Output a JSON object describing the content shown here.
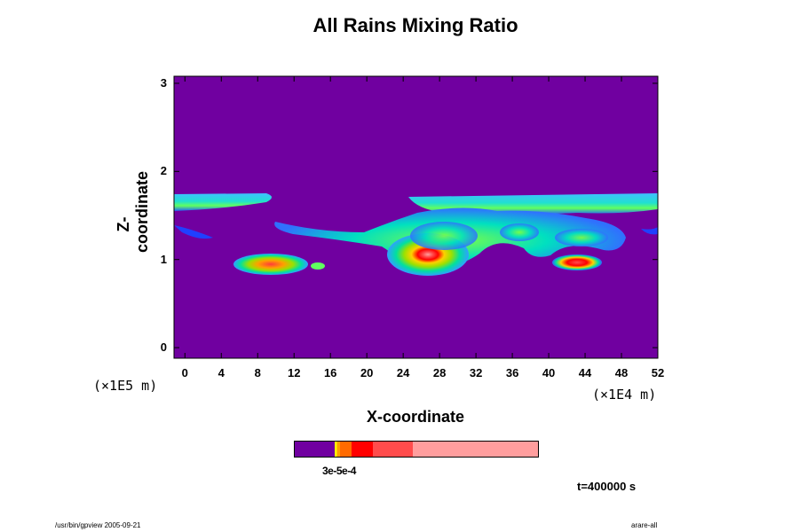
{
  "chart_data": {
    "type": "heatmap",
    "title": "All Rains Mixing Ratio",
    "xlabel": "X-coordinate",
    "ylabel": "Z-coordinate",
    "x_unit_label": "(×1E4 m)",
    "y_unit_label": "(×1E5 m)",
    "xlim": [
      -1.2,
      52
    ],
    "ylim": [
      -0.12,
      3.08
    ],
    "x_ticks": [
      "0",
      "4",
      "8",
      "12",
      "16",
      "20",
      "24",
      "28",
      "32",
      "36",
      "40",
      "44",
      "48",
      "52"
    ],
    "y_ticks": [
      "0",
      "1",
      "2",
      "3"
    ],
    "background_color": "#7000a0",
    "colorbar": {
      "colors": [
        "#7000a0",
        "#ffff00",
        "#ffd000",
        "#ffa000",
        "#ff6a00",
        "#ff0000",
        "#ff4c4c",
        "#ff9e9e"
      ],
      "fractions": [
        0.165,
        0.006,
        0.006,
        0.008,
        0.05,
        0.085,
        0.165,
        0.515
      ],
      "labels_text": "3e-5e-4"
    },
    "features": [
      {
        "name": "upper-band",
        "x": [
          -1.2,
          52
        ],
        "z": [
          1.55,
          1.72
        ],
        "intensity": "low"
      },
      {
        "name": "left-cloud",
        "x": [
          5.5,
          15.8
        ],
        "z": [
          0.88,
          1.12
        ],
        "intensity": "high",
        "core_x": 10.5,
        "core_z": 0.98
      },
      {
        "name": "central-cloud",
        "x": [
          10.5,
          46
        ],
        "z": [
          0.85,
          1.72
        ],
        "intensity": "very-high",
        "core_x": 27.4,
        "core_z": 1.06
      },
      {
        "name": "right-cloud",
        "x": [
          40,
          46.5
        ],
        "z": [
          0.9,
          1.05
        ],
        "intensity": "high",
        "core_x": 43.5,
        "core_z": 0.98
      }
    ],
    "time_label": "t=400000 s"
  },
  "footer": {
    "left": "/usr/bin/gpview 2005-09-21",
    "right": "arare-all"
  }
}
